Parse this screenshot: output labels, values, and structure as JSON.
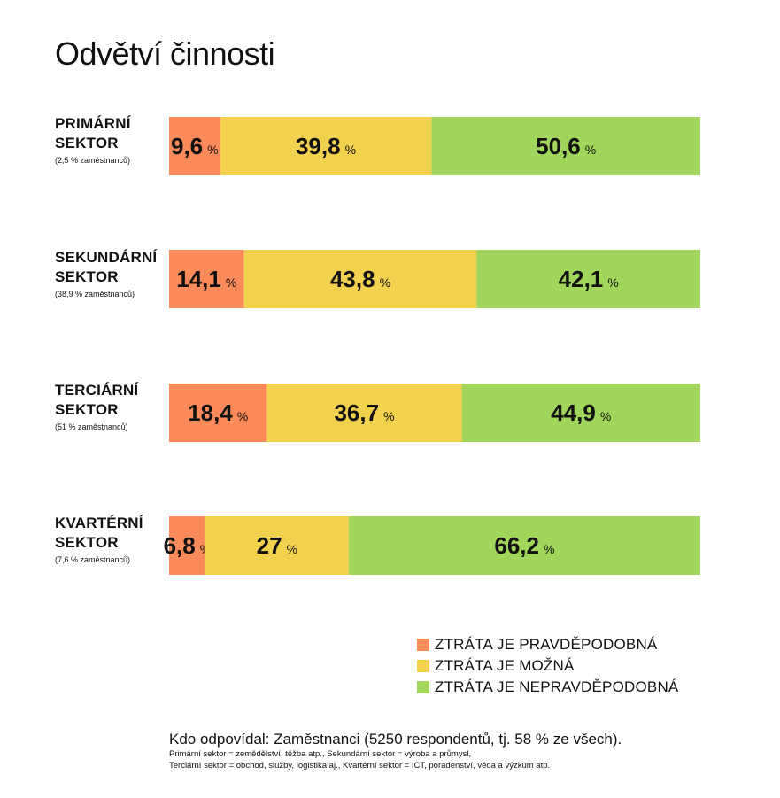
{
  "title": "Odvětví činnosti",
  "colors": {
    "likely": "#FB8B5B",
    "possible": "#F2D14E",
    "unlikely": "#A2D55B"
  },
  "chart_data": {
    "type": "bar",
    "stacked": true,
    "orientation": "horizontal",
    "unit": "%",
    "xlim": [
      0,
      100
    ],
    "grid": false,
    "legend_position": "bottom-right",
    "categories": [
      {
        "name": "PRIMÁRNÍ SEKTOR",
        "sub": "(2,5 % zaměstnanců)"
      },
      {
        "name": "SEKUNDÁRNÍ SEKTOR",
        "sub": "(38,9 % zaměstnanců)"
      },
      {
        "name": "TERCIÁRNÍ SEKTOR",
        "sub": "(51 % zaměstnanců)"
      },
      {
        "name": "KVARTÉRNÍ SEKTOR",
        "sub": "(7,6 % zaměstnanců)"
      }
    ],
    "series": [
      {
        "name": "ZTRÁTA JE PRAVDĚPODOBNÁ",
        "color": "#FB8B5B",
        "values": [
          9.6,
          14.1,
          18.4,
          6.8
        ],
        "labels": [
          "9,6",
          "14,1",
          "18,4",
          "6,8"
        ]
      },
      {
        "name": "ZTRÁTA JE MOŽNÁ",
        "color": "#F2D14E",
        "values": [
          39.8,
          43.8,
          36.7,
          27
        ],
        "labels": [
          "39,8",
          "43,8",
          "36,7",
          "27"
        ]
      },
      {
        "name": "ZTRÁTA JE NEPRAVDĚPODOBNÁ",
        "color": "#A2D55B",
        "values": [
          50.6,
          42.1,
          44.9,
          66.2
        ],
        "labels": [
          "50,6",
          "42,1",
          "44,9",
          "66,2"
        ]
      }
    ]
  },
  "rows": [
    {
      "name": "PRIMÁRNÍ SEKTOR",
      "sub": "(2,5 % zaměstnanců)"
    },
    {
      "name": "SEKUNDÁRNÍ SEKTOR",
      "sub": "(38,9 % zaměstnanců)"
    },
    {
      "name": "TERCIÁRNÍ SEKTOR",
      "sub": "(51 % zaměstnanců)"
    },
    {
      "name": "KVARTÉRNÍ SEKTOR",
      "sub": "(7,6 % zaměstnanců)"
    }
  ],
  "legend": [
    {
      "label": "ZTRÁTA JE PRAVDĚPODOBNÁ"
    },
    {
      "label": "ZTRÁTA JE MOŽNÁ"
    },
    {
      "label": "ZTRÁTA JE NEPRAVDĚPODOBNÁ"
    }
  ],
  "footer": {
    "main": "Kdo odpovídal: Zaměstnanci (5250 respondentů, tj. 58 % ze všech).",
    "note1": "Primární sektor = zemědělství, těžba atp., Sekundární sektor = výroba a průmysl,",
    "note2": "Terciární sektor = obchod, služby, logistika aj., Kvartérní sektor =  ICT, poradenství, věda a výzkum atp."
  }
}
